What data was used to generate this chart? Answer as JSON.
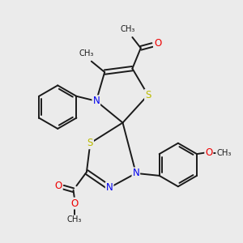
{
  "background_color": "#ebebeb",
  "atom_colors": {
    "C": "#1a1a1a",
    "N": "#0000ee",
    "O": "#ee0000",
    "S": "#bbbb00"
  },
  "figure_size": [
    3.0,
    3.0
  ],
  "dpi": 100,
  "xlim": [
    0,
    10
  ],
  "ylim": [
    0,
    10
  ],
  "lw": 1.4,
  "fs": 8.5,
  "fs_small": 7.2
}
